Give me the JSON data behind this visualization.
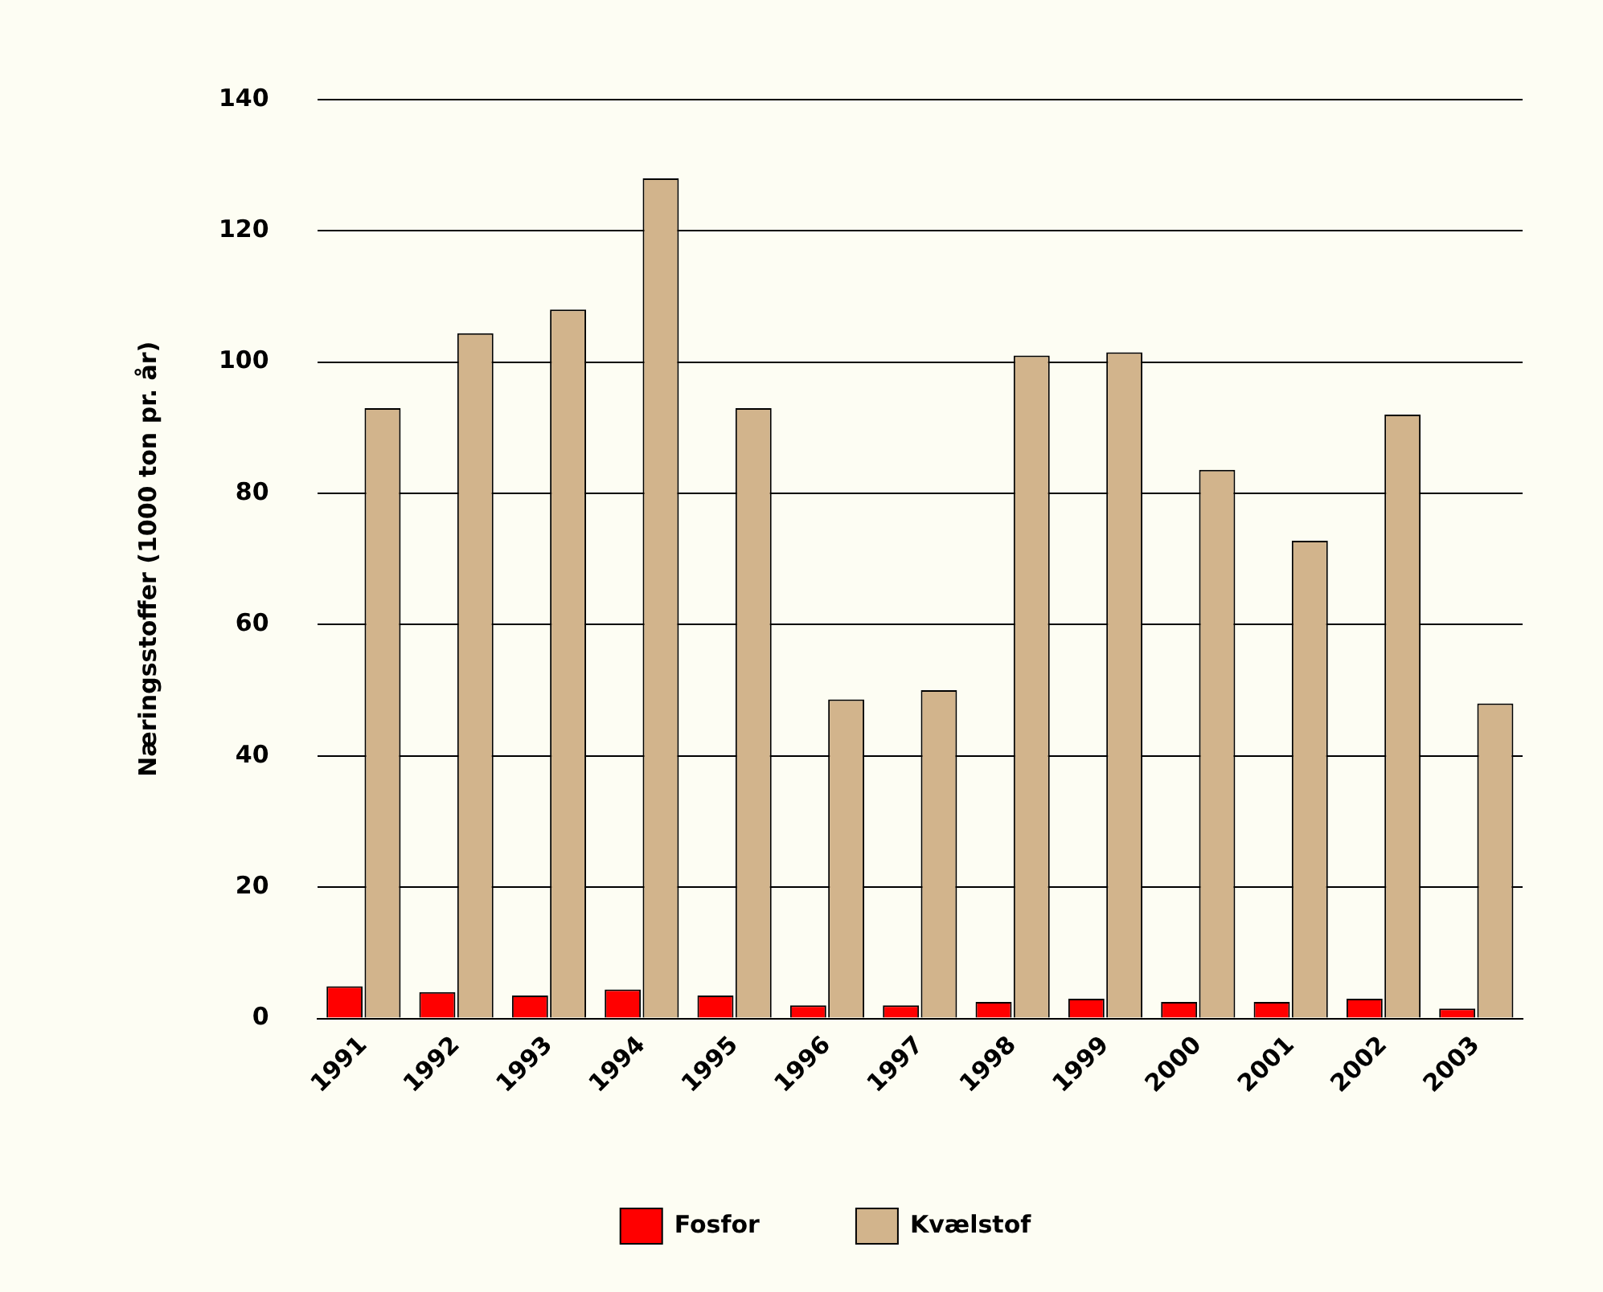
{
  "chart_data": {
    "type": "bar",
    "ylabel": "Næringsstoffer (1000 ton pr. år)",
    "categories": [
      "1991",
      "1992",
      "1993",
      "1994",
      "1995",
      "1996",
      "1997",
      "1998",
      "1999",
      "2000",
      "2001",
      "2002",
      "2003"
    ],
    "series": [
      {
        "name": "Fosfor",
        "color": "#ff0000",
        "values": [
          4.9,
          4,
          3.5,
          4.4,
          3.5,
          2,
          2,
          2.5,
          3,
          2.5,
          2.5,
          3,
          1.5
        ]
      },
      {
        "name": "Kvælstof",
        "color": "#d2b48c",
        "values": [
          93,
          104.4,
          108,
          128,
          93,
          48.6,
          50,
          101,
          101.5,
          83.6,
          72.8,
          92,
          48
        ]
      }
    ],
    "ylim": [
      0,
      140
    ],
    "yticks": [
      0,
      20,
      40,
      60,
      80,
      100,
      120,
      140
    ],
    "grid": "y",
    "legend": "bottom"
  }
}
